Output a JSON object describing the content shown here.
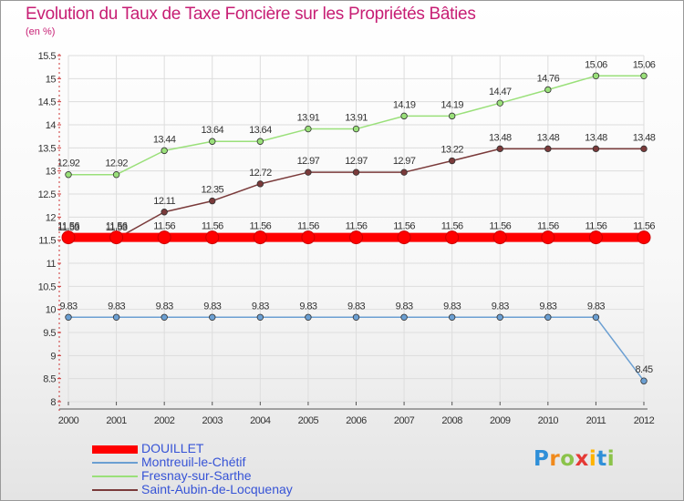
{
  "chart_data": {
    "type": "line",
    "title": "Evolution du Taux de Taxe Foncière sur les Propriétés Bâties",
    "unit_label": "(en %)",
    "xlabel": "",
    "ylabel": "(en %)",
    "ylim": [
      8,
      15.5
    ],
    "y_ticks": [
      "8",
      "8.5",
      "9",
      "9.5",
      "10",
      "10.5",
      "11",
      "11.5",
      "12",
      "12.5",
      "13",
      "13.5",
      "14",
      "14.5",
      "15",
      "15.5"
    ],
    "categories": [
      "2000",
      "2001",
      "2002",
      "2003",
      "2004",
      "2005",
      "2006",
      "2007",
      "2008",
      "2009",
      "2010",
      "2011",
      "2012"
    ],
    "grid": true,
    "legend_position": "bottom-left",
    "series": [
      {
        "name": "DOUILLET",
        "color": "#ff0000",
        "values": [
          11.56,
          11.56,
          11.56,
          11.56,
          11.56,
          11.56,
          11.56,
          11.56,
          11.56,
          11.56,
          11.56,
          11.56,
          11.56
        ],
        "labels": [
          "11.56",
          "11.56",
          "11.56",
          "11.56",
          "11.56",
          "11.56",
          "11.56",
          "11.56",
          "11.56",
          "11.56",
          "11.56",
          "11.56",
          "11.56"
        ]
      },
      {
        "name": "Montreuil-le-Chétif",
        "color": "#6b9fd2",
        "values": [
          9.83,
          9.83,
          9.83,
          9.83,
          9.83,
          9.83,
          9.83,
          9.83,
          9.83,
          9.83,
          9.83,
          9.83,
          8.45
        ],
        "labels": [
          "9.83",
          "9.83",
          "9.83",
          "9.83",
          "9.83",
          "9.83",
          "9.83",
          "9.83",
          "9.83",
          "9.83",
          "9.83",
          "9.83",
          "8.45"
        ]
      },
      {
        "name": "Fresnay-sur-Sarthe",
        "color": "#9ae07a",
        "values": [
          12.92,
          12.92,
          13.44,
          13.64,
          13.64,
          13.91,
          13.91,
          14.19,
          14.19,
          14.47,
          14.76,
          15.06,
          15.06
        ],
        "labels": [
          "12.92",
          "12.92",
          "13.44",
          "13.64",
          "13.64",
          "13.91",
          "13.91",
          "14.19",
          "14.19",
          "14.47",
          "14.76",
          "15.06",
          "15.06"
        ]
      },
      {
        "name": "Saint-Aubin-de-Locquenay",
        "color": "#7a3a3a",
        "values": [
          11.53,
          11.53,
          12.11,
          12.35,
          12.72,
          12.97,
          12.97,
          12.97,
          13.22,
          13.48,
          13.48,
          13.48,
          13.48
        ],
        "labels": [
          "11.53",
          "11.53",
          "12.11",
          "12.35",
          "12.72",
          "12.97",
          "12.97",
          "12.97",
          "13.22",
          "13.48",
          "13.48",
          "13.48",
          "13.48"
        ]
      }
    ]
  },
  "logo": {
    "letters": [
      "P",
      "r",
      "o",
      "x",
      "i",
      "t",
      "i"
    ],
    "colors": [
      "#2f8fd8",
      "#f08a1c",
      "#8bc34a",
      "#e53935",
      "#ffb300",
      "#2f8fd8",
      "#8bc34a"
    ]
  }
}
